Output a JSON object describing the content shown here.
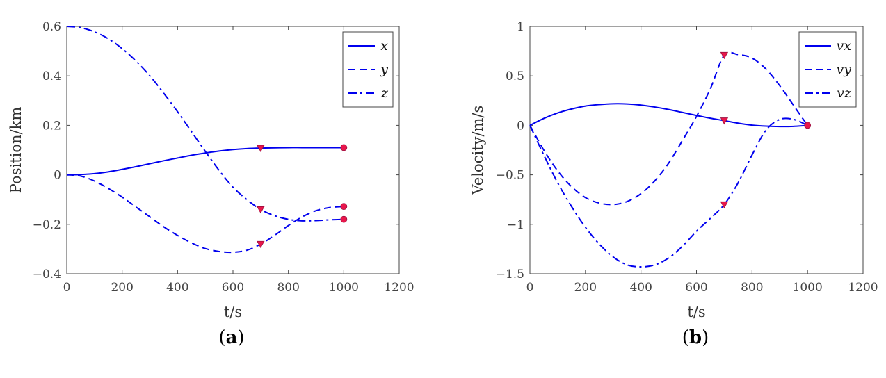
{
  "colors": {
    "line": "#0000ee",
    "marker": "#e8174b",
    "axis": "#444444"
  },
  "chart_data": [
    {
      "type": "line",
      "panel_label": "a",
      "xlabel": "t/s",
      "ylabel": "Position/km",
      "xlim": [
        0,
        1200
      ],
      "ylim": [
        -0.4,
        0.6
      ],
      "xticks": [
        0,
        200,
        400,
        600,
        800,
        1000,
        1200
      ],
      "xtick_labels": [
        "0",
        "200",
        "400",
        "600",
        "800",
        "1000",
        "1200"
      ],
      "yticks": [
        -0.4,
        -0.2,
        0,
        0.2,
        0.4,
        0.6
      ],
      "ytick_labels": [
        "−0.4",
        "−0.2",
        "0",
        "0.2",
        "0.4",
        "0.6"
      ],
      "legend_position": "top-right",
      "series": [
        {
          "name": "x",
          "style": "solid",
          "x": [
            0,
            50,
            100,
            150,
            200,
            250,
            300,
            350,
            400,
            450,
            500,
            550,
            600,
            650,
            700,
            750,
            800,
            850,
            900,
            950,
            1000
          ],
          "y": [
            0,
            0.001,
            0.005,
            0.012,
            0.022,
            0.033,
            0.045,
            0.057,
            0.068,
            0.079,
            0.088,
            0.096,
            0.102,
            0.106,
            0.108,
            0.109,
            0.11,
            0.11,
            0.11,
            0.11,
            0.11
          ]
        },
        {
          "name": "y",
          "style": "dashed",
          "x": [
            0,
            50,
            100,
            150,
            200,
            250,
            300,
            350,
            400,
            450,
            500,
            550,
            600,
            650,
            700,
            750,
            800,
            850,
            900,
            950,
            1000
          ],
          "y": [
            0,
            -0.005,
            -0.025,
            -0.055,
            -0.09,
            -0.13,
            -0.17,
            -0.21,
            -0.245,
            -0.275,
            -0.298,
            -0.31,
            -0.313,
            -0.305,
            -0.28,
            -0.245,
            -0.205,
            -0.17,
            -0.145,
            -0.132,
            -0.128
          ]
        },
        {
          "name": "z",
          "style": "dashdot",
          "x": [
            0,
            50,
            100,
            150,
            200,
            250,
            300,
            350,
            400,
            450,
            500,
            550,
            600,
            650,
            700,
            750,
            800,
            850,
            900,
            950,
            1000
          ],
          "y": [
            0.6,
            0.595,
            0.578,
            0.55,
            0.51,
            0.46,
            0.4,
            0.33,
            0.255,
            0.175,
            0.095,
            0.018,
            -0.05,
            -0.1,
            -0.14,
            -0.165,
            -0.18,
            -0.186,
            -0.185,
            -0.182,
            -0.18
          ]
        }
      ],
      "markers": [
        {
          "shape": "triangle",
          "x": 700,
          "y": 0.108
        },
        {
          "shape": "triangle",
          "x": 700,
          "y": -0.14
        },
        {
          "shape": "triangle",
          "x": 700,
          "y": -0.28
        },
        {
          "shape": "circle",
          "x": 1000,
          "y": 0.11
        },
        {
          "shape": "circle",
          "x": 1000,
          "y": -0.128
        },
        {
          "shape": "circle",
          "x": 1000,
          "y": -0.18
        }
      ]
    },
    {
      "type": "line",
      "panel_label": "b",
      "xlabel": "t/s",
      "ylabel": "Velocity/m/s",
      "xlim": [
        0,
        1200
      ],
      "ylim": [
        -1.5,
        1
      ],
      "xticks": [
        0,
        200,
        400,
        600,
        800,
        1000,
        1200
      ],
      "xtick_labels": [
        "0",
        "200",
        "400",
        "600",
        "800",
        "1000",
        "1200"
      ],
      "yticks": [
        -1.5,
        -1,
        -0.5,
        0,
        0.5,
        1
      ],
      "ytick_labels": [
        "−1.5",
        "−1",
        "−0.5",
        "0",
        "0.5",
        "1"
      ],
      "legend_position": "top-right",
      "series": [
        {
          "name": "vx",
          "style": "solid",
          "x": [
            0,
            50,
            100,
            150,
            200,
            250,
            300,
            350,
            400,
            450,
            500,
            550,
            600,
            650,
            700,
            750,
            800,
            850,
            900,
            950,
            1000
          ],
          "y": [
            0,
            0.07,
            0.125,
            0.165,
            0.195,
            0.21,
            0.218,
            0.216,
            0.205,
            0.185,
            0.16,
            0.13,
            0.1,
            0.072,
            0.048,
            0.022,
            0.002,
            -0.008,
            -0.012,
            -0.01,
            0
          ]
        },
        {
          "name": "vy",
          "style": "dashed",
          "x": [
            0,
            50,
            100,
            150,
            200,
            250,
            300,
            350,
            400,
            450,
            500,
            550,
            600,
            650,
            700,
            750,
            800,
            850,
            900,
            950,
            1000
          ],
          "y": [
            0,
            -0.25,
            -0.46,
            -0.62,
            -0.73,
            -0.785,
            -0.8,
            -0.77,
            -0.69,
            -0.56,
            -0.38,
            -0.15,
            0.09,
            0.37,
            0.71,
            0.715,
            0.68,
            0.57,
            0.4,
            0.2,
            0
          ]
        },
        {
          "name": "vz",
          "style": "dashdot",
          "x": [
            0,
            50,
            100,
            150,
            200,
            250,
            300,
            350,
            400,
            450,
            500,
            550,
            600,
            650,
            700,
            750,
            800,
            850,
            900,
            950,
            1000
          ],
          "y": [
            0,
            -0.3,
            -0.58,
            -0.82,
            -1.03,
            -1.2,
            -1.33,
            -1.41,
            -1.43,
            -1.41,
            -1.34,
            -1.22,
            -1.07,
            -0.94,
            -0.8,
            -0.58,
            -0.3,
            -0.05,
            0.06,
            0.06,
            0
          ]
        }
      ],
      "markers": [
        {
          "shape": "triangle",
          "x": 700,
          "y": 0.71
        },
        {
          "shape": "triangle",
          "x": 700,
          "y": 0.048
        },
        {
          "shape": "triangle",
          "x": 700,
          "y": -0.8
        },
        {
          "shape": "circle",
          "x": 1000,
          "y": 0
        }
      ]
    }
  ]
}
